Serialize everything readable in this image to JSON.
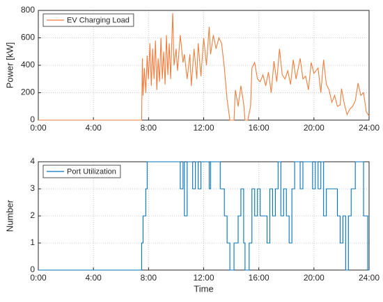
{
  "chart_data": [
    {
      "type": "line",
      "ylabel": "Power [kW]",
      "series": [
        {
          "name": "EV Charging Load",
          "color": "#ef7d3c",
          "x": [
            0,
            7.5,
            7.55,
            7.6,
            7.7,
            7.8,
            7.9,
            8.0,
            8.1,
            8.2,
            8.3,
            8.4,
            8.5,
            8.6,
            8.7,
            8.8,
            8.9,
            9.0,
            9.1,
            9.2,
            9.3,
            9.4,
            9.5,
            9.6,
            9.75,
            9.85,
            10.0,
            10.1,
            10.3,
            10.5,
            10.6,
            10.8,
            11.0,
            11.1,
            11.3,
            11.5,
            11.6,
            11.8,
            12.0,
            12.2,
            12.4,
            12.5,
            12.7,
            12.9,
            13.1,
            13.3,
            13.5,
            13.7,
            13.9,
            14.2,
            14.3,
            14.5,
            14.7,
            14.9,
            15.0,
            15.2,
            15.4,
            15.5,
            15.7,
            15.9,
            16.1,
            16.3,
            16.5,
            16.7,
            16.9,
            17.1,
            17.3,
            17.5,
            17.7,
            17.9,
            18.1,
            18.3,
            18.5,
            18.7,
            19.0,
            19.2,
            19.4,
            19.6,
            19.8,
            20.0,
            20.3,
            20.5,
            20.7,
            20.9,
            21.1,
            21.3,
            21.5,
            21.7,
            21.9,
            22.0,
            22.2,
            22.4,
            22.6,
            22.8,
            23.0,
            23.2,
            23.4,
            23.6,
            23.8,
            24.0
          ],
          "values": [
            0,
            0,
            450,
            180,
            380,
            200,
            470,
            300,
            560,
            250,
            520,
            300,
            580,
            220,
            450,
            280,
            600,
            300,
            500,
            260,
            620,
            330,
            560,
            300,
            780,
            400,
            520,
            360,
            620,
            420,
            480,
            300,
            480,
            250,
            520,
            300,
            560,
            320,
            600,
            400,
            680,
            480,
            620,
            520,
            600,
            560,
            380,
            150,
            0,
            0,
            220,
            100,
            250,
            120,
            0,
            0,
            100,
            380,
            420,
            300,
            280,
            330,
            250,
            350,
            200,
            430,
            280,
            520,
            330,
            300,
            360,
            260,
            440,
            300,
            450,
            300,
            320,
            220,
            420,
            340,
            380,
            200,
            440,
            260,
            220,
            130,
            180,
            100,
            110,
            230,
            120,
            40,
            80,
            100,
            140,
            270,
            180,
            200,
            60,
            30
          ]
        }
      ],
      "xlim": [
        0,
        24
      ],
      "ylim": [
        0,
        800
      ],
      "xticks": [
        {
          "value": 0,
          "label": "0:00"
        },
        {
          "value": 4,
          "label": "4:00"
        },
        {
          "value": 8,
          "label": "8:00"
        },
        {
          "value": 12,
          "label": "12:00"
        },
        {
          "value": 16,
          "label": "16:00"
        },
        {
          "value": 20,
          "label": "20:00"
        },
        {
          "value": 24,
          "label": "24:00"
        }
      ],
      "yticks": [
        0,
        200,
        400,
        600,
        800
      ],
      "grid": true,
      "legend": "upper left"
    },
    {
      "type": "step",
      "ylabel": "Number",
      "xlabel": "Time",
      "series": [
        {
          "name": "Port Utilization",
          "color": "#0072bd",
          "x": [
            0,
            7.5,
            7.6,
            7.8,
            7.9,
            10.3,
            10.5,
            10.6,
            10.8,
            11.2,
            11.4,
            11.6,
            11.8,
            12.4,
            12.5,
            13.2,
            13.5,
            13.7,
            13.9,
            14.2,
            14.5,
            14.7,
            14.9,
            15.0,
            15.3,
            15.5,
            15.7,
            15.9,
            16.1,
            16.6,
            16.8,
            17.0,
            17.2,
            17.4,
            17.6,
            17.8,
            18.0,
            18.2,
            18.4,
            18.6,
            19.0,
            19.2,
            19.9,
            20.1,
            20.3,
            20.5,
            20.7,
            20.9,
            21.7,
            21.9,
            22.1,
            22.3,
            22.5,
            22.7,
            23.0,
            23.6,
            23.9,
            24.0
          ],
          "values": [
            0,
            1,
            2,
            3,
            4,
            3,
            4,
            2,
            4,
            3,
            4,
            3,
            4,
            3,
            4,
            3,
            2,
            1,
            0,
            1,
            2,
            3,
            1,
            0,
            1,
            3,
            2,
            3,
            2,
            1,
            3,
            2,
            3,
            4,
            2,
            3,
            2,
            1,
            3,
            4,
            3,
            4,
            3,
            4,
            3,
            4,
            2,
            3,
            2,
            1,
            2,
            0,
            2,
            3,
            4,
            2,
            0,
            0
          ]
        }
      ],
      "xlim": [
        0,
        24
      ],
      "ylim": [
        0,
        4
      ],
      "xticks": [
        {
          "value": 0,
          "label": "0:00"
        },
        {
          "value": 4,
          "label": "4:00"
        },
        {
          "value": 8,
          "label": "8:00"
        },
        {
          "value": 12,
          "label": "12:00"
        },
        {
          "value": 16,
          "label": "16:00"
        },
        {
          "value": 20,
          "label": "20:00"
        },
        {
          "value": 24,
          "label": "24:00"
        }
      ],
      "yticks": [
        0,
        1,
        2,
        3,
        4
      ],
      "grid": true,
      "legend": "upper left"
    }
  ]
}
